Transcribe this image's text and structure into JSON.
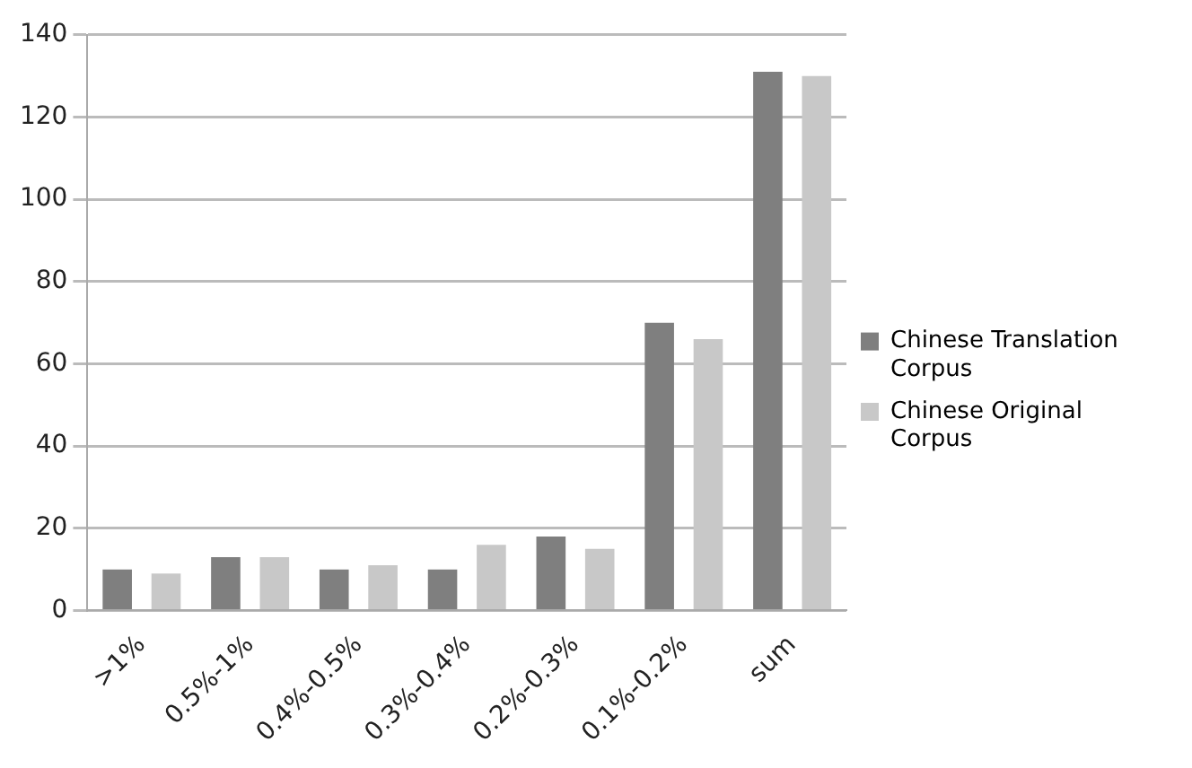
{
  "chart_data": {
    "type": "bar",
    "categories": [
      ">1%",
      "0.5%-1%",
      "0.4%-0.5%",
      "0.3%-0.4%",
      "0.2%-0.3%",
      "0.1%-0.2%",
      "sum"
    ],
    "series": [
      {
        "name": "Chinese Translation Corpus",
        "color": "#7f7f7f",
        "values": [
          10,
          13,
          10,
          10,
          18,
          70,
          131
        ]
      },
      {
        "name": "Chinese Original Corpus",
        "color": "#c8c8c8",
        "values": [
          9,
          13,
          11,
          16,
          15,
          66,
          130
        ]
      }
    ],
    "ylim": [
      0,
      140
    ],
    "yticks": [
      0,
      20,
      40,
      60,
      80,
      100,
      120,
      140
    ],
    "grid": "y",
    "legend": "right"
  }
}
